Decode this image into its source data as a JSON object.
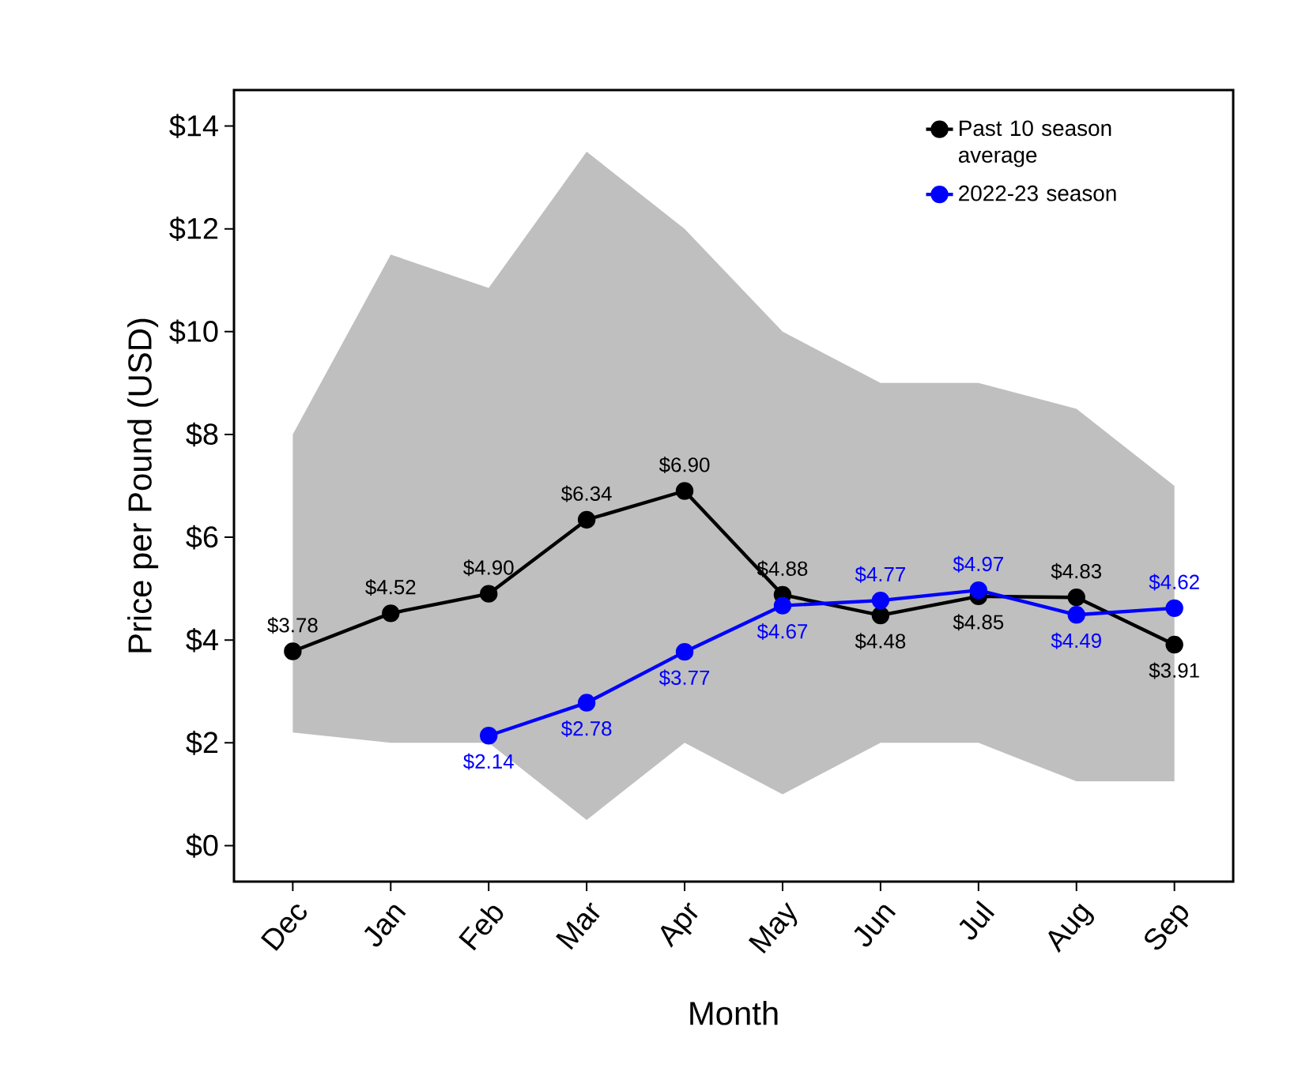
{
  "chart_data": {
    "type": "line",
    "xlabel": "Month",
    "ylabel": "Price per Pound (USD)",
    "categories": [
      "Dec",
      "Jan",
      "Feb",
      "Mar",
      "Apr",
      "May",
      "Jun",
      "Jul",
      "Aug",
      "Sep"
    ],
    "series": [
      {
        "name": "Past 10 season average",
        "color": "#000000",
        "values": [
          3.78,
          4.52,
          4.9,
          6.34,
          6.9,
          4.88,
          4.48,
          4.85,
          4.83,
          3.91
        ],
        "value_labels": [
          "$3.78",
          "$4.52",
          "$4.90",
          "$6.34",
          "$6.90",
          "$4.88",
          "$4.48",
          "$4.85",
          "$4.83",
          "$3.91"
        ],
        "lower": [
          2.2,
          2.0,
          2.0,
          0.5,
          2.0,
          1.0,
          2.0,
          2.0,
          1.25,
          1.25
        ],
        "upper": [
          8.0,
          11.5,
          10.85,
          13.5,
          12.0,
          10.0,
          9.0,
          9.0,
          8.5,
          7.0
        ]
      },
      {
        "name": "2022-23 season",
        "color": "#0000ff",
        "values": [
          null,
          null,
          2.14,
          2.78,
          3.77,
          4.67,
          4.77,
          4.97,
          4.49,
          4.62
        ],
        "value_labels": [
          null,
          null,
          "$2.14",
          "$2.78",
          "$3.77",
          "$4.67",
          "$4.77",
          "$4.97",
          "$4.49",
          "$4.62"
        ]
      }
    ],
    "ylim": [
      -0.7,
      14.7
    ],
    "yticks": [
      {
        "value": 0,
        "label": "$0"
      },
      {
        "value": 2,
        "label": "$2"
      },
      {
        "value": 4,
        "label": "$4"
      },
      {
        "value": 6,
        "label": "$6"
      },
      {
        "value": 8,
        "label": "$8"
      },
      {
        "value": 10,
        "label": "$10"
      },
      {
        "value": 12,
        "label": "$12"
      },
      {
        "value": 14,
        "label": "$14"
      }
    ],
    "grid": false,
    "legend": "top right",
    "marker": "circle",
    "line_style": "solid"
  }
}
